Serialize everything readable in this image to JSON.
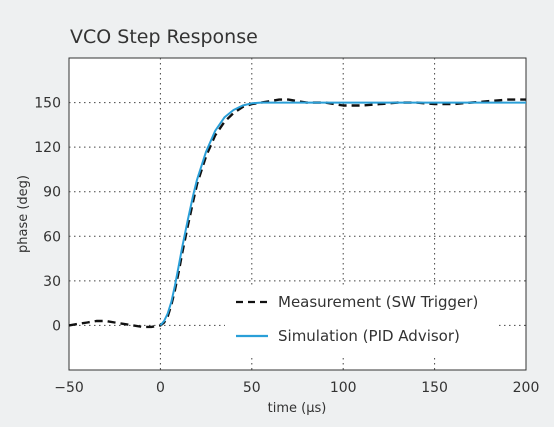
{
  "chart_data": {
    "type": "line",
    "title": "VCO Step Response",
    "xlabel": "time (µs)",
    "ylabel": "phase (deg)",
    "xlim": [
      -50,
      200
    ],
    "ylim": [
      -30,
      180
    ],
    "x_ticks": [
      -50,
      0,
      50,
      100,
      150,
      200
    ],
    "x_tick_labels": [
      "−50",
      "0",
      "50",
      "100",
      "150",
      "200"
    ],
    "y_ticks": [
      0,
      30,
      60,
      90,
      120,
      150
    ],
    "y_tick_labels": [
      "0",
      "30",
      "60",
      "90",
      "120",
      "150"
    ],
    "grid": true,
    "legend_position": "bottom-right",
    "series": [
      {
        "name": "Measurement (SW Trigger)",
        "style": "dashed",
        "color": "#111111",
        "x": [
          -50,
          -45,
          -40,
          -35,
          -30,
          -25,
          -20,
          -15,
          -10,
          -5,
          0,
          2,
          4,
          6,
          8,
          10,
          12,
          15,
          18,
          20,
          25,
          30,
          35,
          40,
          45,
          50,
          55,
          60,
          65,
          70,
          75,
          80,
          90,
          100,
          110,
          120,
          130,
          140,
          150,
          160,
          170,
          180,
          190,
          200
        ],
        "y": [
          0,
          1,
          2,
          3,
          3,
          2,
          1,
          0,
          -1,
          -1,
          0,
          2,
          6,
          14,
          24,
          36,
          49,
          67,
          84,
          95,
          114,
          128,
          137,
          143,
          147,
          149,
          150,
          151,
          152,
          152,
          151,
          150,
          150,
          148,
          148,
          149,
          150,
          150,
          149,
          149,
          150,
          151,
          152,
          152
        ]
      },
      {
        "name": "Simulation (PID Advisor)",
        "style": "solid",
        "color": "#2a9fd8",
        "x": [
          0,
          2,
          4,
          6,
          8,
          10,
          12,
          15,
          18,
          20,
          25,
          30,
          35,
          40,
          45,
          50,
          55,
          60,
          65,
          70,
          80,
          100,
          150,
          200
        ],
        "y": [
          0,
          3,
          8,
          16,
          27,
          40,
          53,
          71,
          88,
          98,
          117,
          131,
          140,
          145,
          148,
          149.5,
          150,
          150,
          150,
          150,
          150,
          150,
          150,
          150
        ]
      }
    ]
  }
}
